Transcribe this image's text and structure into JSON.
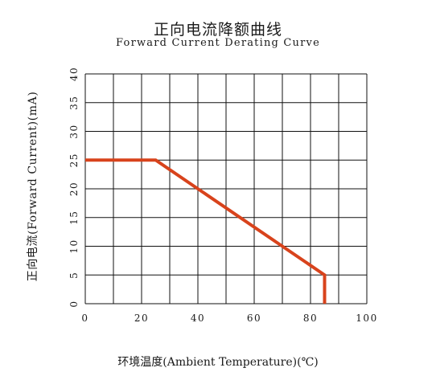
{
  "chart_data": {
    "type": "line",
    "title": "正向电流降额曲线",
    "subtitle": "Forward Current Derating Curve",
    "xlabel": "环境温度(Ambient Temperature)(℃)",
    "ylabel": "正向电流(Forward Current)(mA)",
    "xlim": [
      0,
      100
    ],
    "ylim": [
      0,
      40
    ],
    "x_ticks": [
      "0",
      "20",
      "40",
      "60",
      "80",
      "100"
    ],
    "y_ticks": [
      "0",
      "5",
      "10",
      "15",
      "20",
      "25",
      "30",
      "35",
      "40"
    ],
    "grid": true,
    "series": [
      {
        "color": "#d8431c",
        "points": [
          {
            "x": 0,
            "y": 25
          },
          {
            "x": 25,
            "y": 25
          },
          {
            "x": 85,
            "y": 5
          },
          {
            "x": 85,
            "y": 0
          }
        ]
      }
    ]
  }
}
